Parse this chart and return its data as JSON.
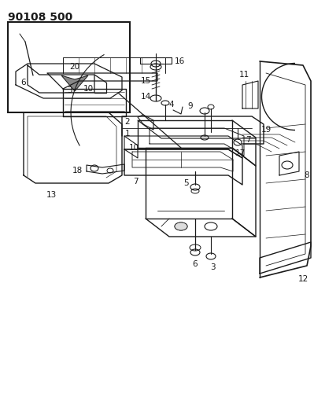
{
  "title": "90108 500",
  "background_color": "#ffffff",
  "line_color": "#1a1a1a",
  "text_color": "#1a1a1a",
  "title_fontsize": 10,
  "label_fontsize": 7.5,
  "figsize": [
    3.99,
    5.33
  ],
  "dpi": 100,
  "gray": "#888888",
  "darkgray": "#555555",
  "lightgray": "#cccccc"
}
